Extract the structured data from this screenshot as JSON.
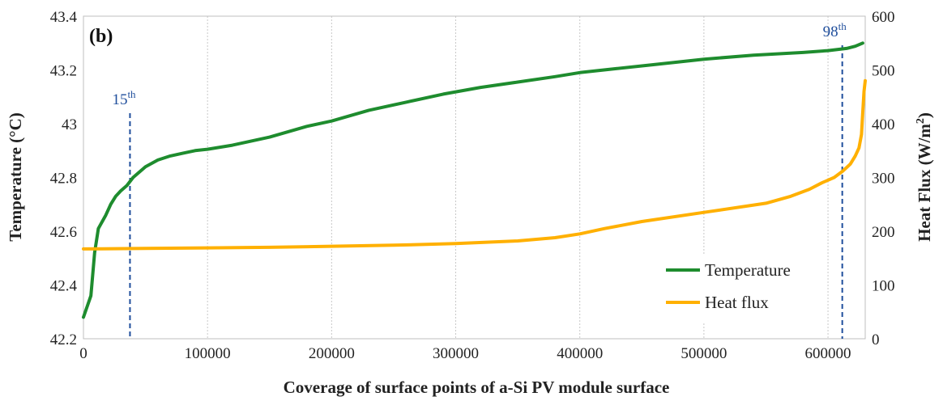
{
  "chart_data": {
    "type": "line",
    "panel_label": "(b)",
    "xlabel": "Coverage of surface points of a-Si PV module surface",
    "ylabel": "Temperature (°C)",
    "y2label_main": "Heat Flux (W/m",
    "y2label_sup": "2",
    "y2label_end": ")",
    "xlim": [
      0,
      630000
    ],
    "ylim": [
      42.2,
      43.4
    ],
    "y2lim": [
      0,
      600
    ],
    "x_ticks": [
      "0",
      "100000",
      "200000",
      "300000",
      "400000",
      "500000",
      "600000"
    ],
    "y_ticks": [
      "42.2",
      "42.4",
      "42.6",
      "42.8",
      "43",
      "43.2",
      "43.4"
    ],
    "y2_ticks": [
      "0",
      "100",
      "200",
      "300",
      "400",
      "500",
      "600"
    ],
    "grid": "vertical dotted",
    "legend_position": "bottom-right",
    "series": [
      {
        "name": "Temperature",
        "axis": "left",
        "color": "#1e8c2e",
        "x": [
          0,
          3000,
          6000,
          9000,
          12000,
          18000,
          22000,
          26000,
          30000,
          35000,
          40000,
          50000,
          60000,
          70000,
          80000,
          90000,
          100000,
          120000,
          150000,
          180000,
          200000,
          230000,
          260000,
          290000,
          320000,
          350000,
          380000,
          400000,
          430000,
          460000,
          500000,
          540000,
          580000,
          600000,
          615000,
          622000,
          628000
        ],
        "values": [
          42.28,
          42.32,
          42.36,
          42.52,
          42.61,
          42.66,
          42.7,
          42.73,
          42.75,
          42.77,
          42.8,
          42.84,
          42.865,
          42.88,
          42.89,
          42.9,
          42.905,
          42.92,
          42.95,
          42.99,
          43.01,
          43.05,
          43.08,
          43.11,
          43.135,
          43.155,
          43.175,
          43.19,
          43.205,
          43.22,
          43.24,
          43.255,
          43.265,
          43.272,
          43.28,
          43.288,
          43.3
        ]
      },
      {
        "name": "Heat flux",
        "axis": "right",
        "color": "#ffb000",
        "x": [
          0,
          50000,
          100000,
          150000,
          200000,
          250000,
          300000,
          350000,
          380000,
          400000,
          420000,
          450000,
          500000,
          550000,
          570000,
          585000,
          595000,
          605000,
          612000,
          618000,
          622000,
          625000,
          627000,
          628000,
          629000,
          630000
        ],
        "values": [
          167,
          168,
          169,
          170,
          172,
          174,
          177,
          182,
          188,
          195,
          205,
          218,
          235,
          252,
          265,
          278,
          290,
          300,
          312,
          325,
          340,
          355,
          380,
          420,
          460,
          480
        ]
      }
    ],
    "annotations": [
      {
        "base": "15",
        "sup": "th",
        "x": 37500,
        "color": "#1f4e9c"
      },
      {
        "base": "98",
        "sup": "th",
        "x": 611500,
        "color": "#1f4e9c"
      }
    ]
  }
}
